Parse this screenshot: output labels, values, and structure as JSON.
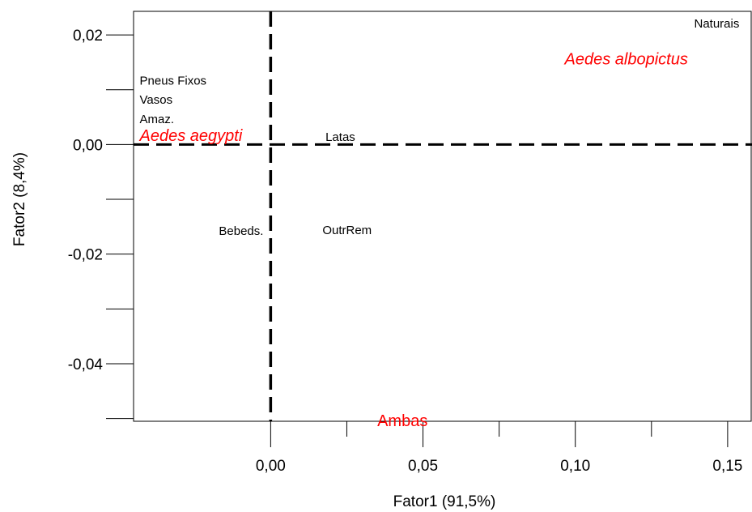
{
  "chart_data": {
    "type": "scatter",
    "xlabel": "Fator1 (91,5%)",
    "ylabel": "Fator2 (8,4%)",
    "xlim": [
      -0.045,
      0.158
    ],
    "ylim": [
      -0.0505,
      0.0243
    ],
    "x_ticks": [
      {
        "value": 0.0,
        "label": "0,00"
      },
      {
        "value": 0.05,
        "label": "0,05"
      },
      {
        "value": 0.1,
        "label": "0,10"
      },
      {
        "value": 0.15,
        "label": "0,15"
      }
    ],
    "x_minor_ticks": [
      0.025,
      0.075,
      0.125
    ],
    "y_ticks": [
      {
        "value": 0.02,
        "label": "0,02"
      },
      {
        "value": 0.0,
        "label": "0,00"
      },
      {
        "value": -0.02,
        "label": "-0,02"
      },
      {
        "value": -0.04,
        "label": "-0,04"
      }
    ],
    "y_minor_ticks": [
      0.01,
      -0.01,
      -0.03,
      -0.05
    ],
    "reference_lines": {
      "x": 0.0,
      "y": 0.0,
      "style": "dashed"
    },
    "points": [
      {
        "label": "Naturais",
        "x": 0.139,
        "y": 0.0222,
        "kind": "container"
      },
      {
        "label": "Pneus Fixos",
        "x": -0.043,
        "y": 0.0118,
        "kind": "container"
      },
      {
        "label": "Vasos",
        "x": -0.043,
        "y": 0.0083,
        "kind": "container"
      },
      {
        "label": "Amaz.",
        "x": -0.043,
        "y": 0.0048,
        "kind": "container"
      },
      {
        "label": "Latas",
        "x": 0.018,
        "y": 0.0015,
        "kind": "container"
      },
      {
        "label": "Bebeds.",
        "x": -0.017,
        "y": -0.0156,
        "kind": "container"
      },
      {
        "label": "OutrRem",
        "x": 0.017,
        "y": -0.0155,
        "kind": "container"
      },
      {
        "label": "Aedes albopictus",
        "x": 0.0965,
        "y": 0.0155,
        "kind": "species"
      },
      {
        "label": "Aedes aegypti",
        "x": -0.043,
        "y": 0.0015,
        "kind": "species"
      },
      {
        "label": "Ambas",
        "x": 0.035,
        "y": -0.0505,
        "kind": "group"
      }
    ],
    "grid": false,
    "legend": "none"
  }
}
